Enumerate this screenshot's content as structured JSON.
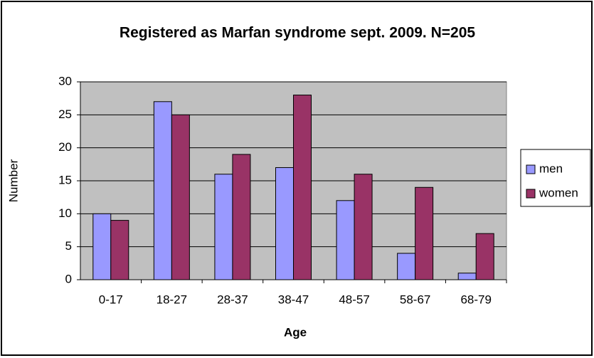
{
  "chart_data": {
    "type": "bar",
    "title": "Registered as Marfan syndrome sept. 2009. N=205",
    "x_label": "Age",
    "y_label": "Number",
    "categories": [
      "0-17",
      "18-27",
      "28-37",
      "38-47",
      "48-57",
      "58-67",
      "68-79"
    ],
    "series": [
      {
        "name": "men",
        "color": "#9999ff",
        "values": [
          10,
          27,
          16,
          17,
          12,
          4,
          1
        ]
      },
      {
        "name": "women",
        "color": "#993366",
        "values": [
          9,
          25,
          19,
          28,
          16,
          14,
          7
        ]
      }
    ],
    "ylim": [
      0,
      30
    ],
    "yticks": [
      0,
      5,
      10,
      15,
      20,
      25,
      30
    ],
    "grid": true,
    "legend": "right"
  }
}
